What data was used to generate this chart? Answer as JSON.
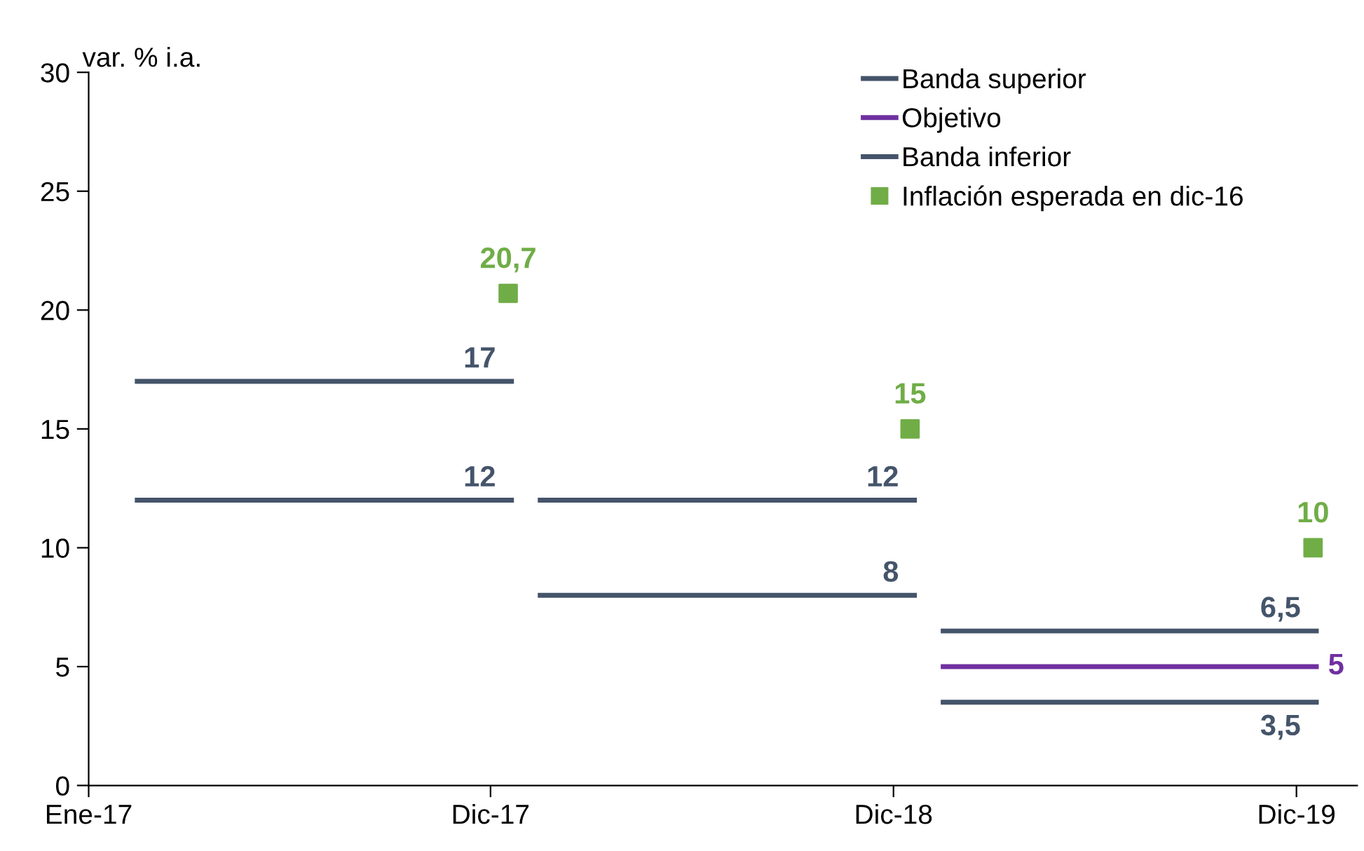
{
  "chart_data": {
    "type": "line",
    "ylabel": "var. % i.a.",
    "xlim": [
      "2017-01-01",
      "2020-02-24"
    ],
    "xticks": [
      {
        "value": "2017-01-01",
        "label": "Ene-17"
      },
      {
        "value": "2017-12-31",
        "label": "Dic-17"
      },
      {
        "value": "2018-12-31",
        "label": "Dic-18"
      },
      {
        "value": "2019-12-31",
        "label": "Dic-19"
      }
    ],
    "ylim": [
      0,
      30
    ],
    "yticks": [
      0,
      5,
      10,
      15,
      20,
      25,
      30
    ],
    "grid": false,
    "legend": "top right",
    "series": [
      {
        "name": "Banda superior",
        "color": "#44546a",
        "x": [
          "2017-02-14",
          "2018-01-19",
          "2018-01-30",
          "2018-02-14",
          "2019-01-19",
          "2019-01-30",
          "2019-02-14",
          "2020-01-18"
        ],
        "values": [
          17,
          17,
          null,
          12,
          12,
          null,
          6.5,
          6.5
        ],
        "value_labels": [
          null,
          "17",
          null,
          null,
          "12",
          null,
          null,
          "6,5"
        ]
      },
      {
        "name": "Objetivo",
        "color": "#7030a0",
        "x": [
          "2019-02-14",
          "2020-01-18"
        ],
        "values": [
          5,
          5
        ],
        "value_labels": [
          null,
          "5"
        ]
      },
      {
        "name": "Banda inferior",
        "color": "#44546a",
        "x": [
          "2017-02-14",
          "2018-01-19",
          "2018-01-30",
          "2018-02-14",
          "2019-01-19",
          "2019-01-30",
          "2019-02-14",
          "2020-01-18"
        ],
        "values": [
          12,
          12,
          null,
          8,
          8,
          null,
          3.5,
          3.5
        ],
        "value_labels": [
          null,
          "12",
          null,
          null,
          "8",
          null,
          null,
          "3,5"
        ]
      },
      {
        "name": "Inflación esperada en dic-16",
        "type": "scatter",
        "marker": "square",
        "color": "#70ad47",
        "x": [
          "2018-01-16",
          "2019-01-15",
          "2020-01-15"
        ],
        "values": [
          20.7,
          15,
          10
        ],
        "value_labels": [
          "20,7",
          "15",
          "10"
        ]
      }
    ]
  }
}
